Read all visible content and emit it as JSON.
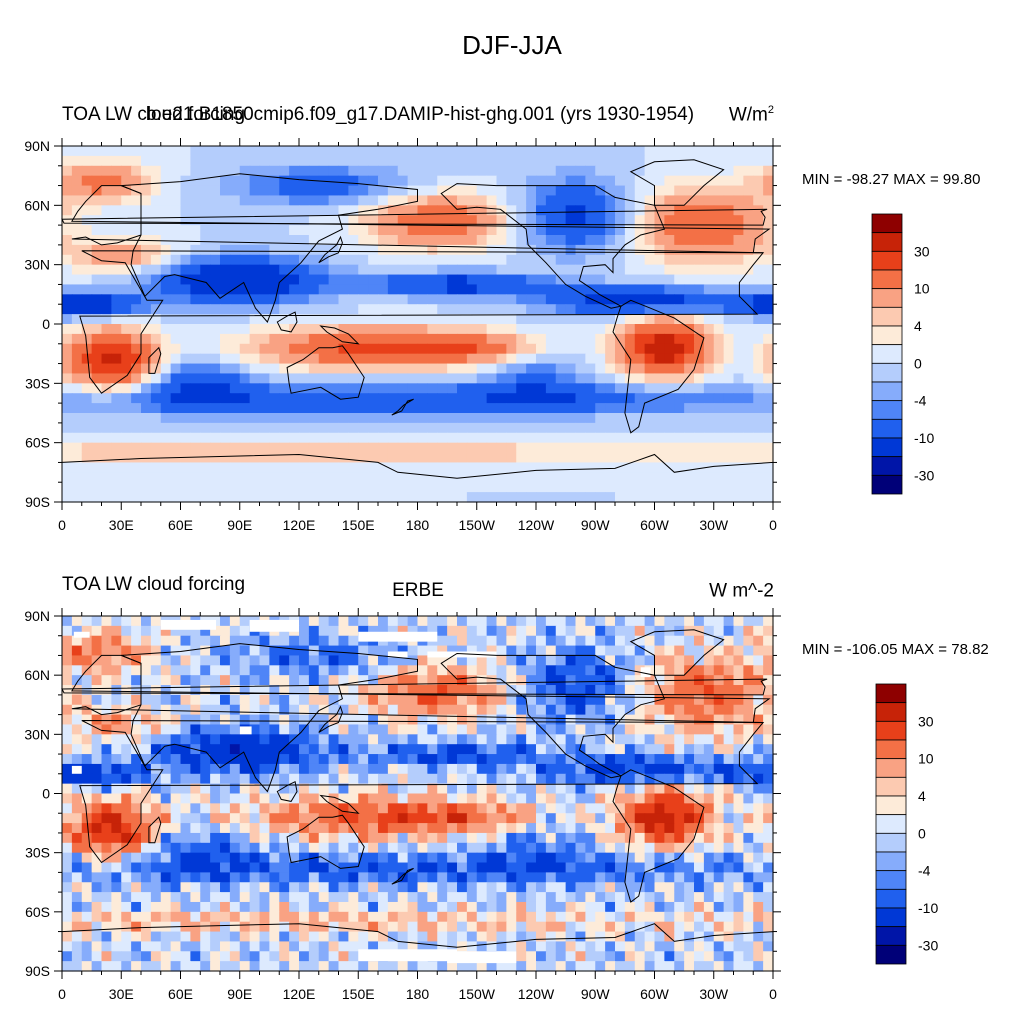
{
  "title": "DJF-JJA",
  "colors": {
    "ramp": [
      "#000078",
      "#0015a8",
      "#0038d6",
      "#2060ee",
      "#4f85f7",
      "#86acfb",
      "#b4cdfc",
      "#ddeafe",
      "#fdebd9",
      "#fccab1",
      "#f9a283",
      "#f37046",
      "#e8401a",
      "#c72308",
      "#8e0000"
    ],
    "land_outline": "#000000"
  },
  "chart_data": [
    {
      "type": "heatmap",
      "left_title": "TOA LW cloud forcing",
      "center_title": "b.e21.B1850cmip6.f09_g17.DAMIP-hist-ghg.001 (yrs 1930-1954)",
      "units_base": "W/m",
      "units_sup": "2",
      "stats": "MIN = -98.27 MAX =  99.80",
      "x_ticks": [
        "0",
        "30E",
        "60E",
        "90E",
        "120E",
        "150E",
        "180",
        "150W",
        "120W",
        "90W",
        "60W",
        "30W",
        "0"
      ],
      "y_ticks": [
        "90N",
        "60N",
        "30N",
        "0",
        "30S",
        "60S",
        "90S"
      ],
      "xlim": [
        0,
        360
      ],
      "ylim": [
        -90,
        90
      ],
      "colorbar_labels": [
        "30",
        "10",
        "4",
        "0",
        "-4",
        "-10",
        "-30"
      ]
    },
    {
      "type": "heatmap",
      "left_title": "TOA LW cloud forcing",
      "center_title": "ERBE",
      "units_base": "W m^-2",
      "units_sup": "",
      "stats": "MIN = -106.05 MAX =  78.82",
      "x_ticks": [
        "0",
        "30E",
        "60E",
        "90E",
        "120E",
        "150E",
        "180",
        "150W",
        "120W",
        "90W",
        "60W",
        "30W",
        "0"
      ],
      "y_ticks": [
        "90N",
        "60N",
        "30N",
        "0",
        "30S",
        "60S",
        "90S"
      ],
      "xlim": [
        0,
        360
      ],
      "ylim": [
        -90,
        90
      ],
      "colorbar_labels": [
        "30",
        "10",
        "4",
        "0",
        "-4",
        "-10",
        "-30"
      ]
    }
  ]
}
